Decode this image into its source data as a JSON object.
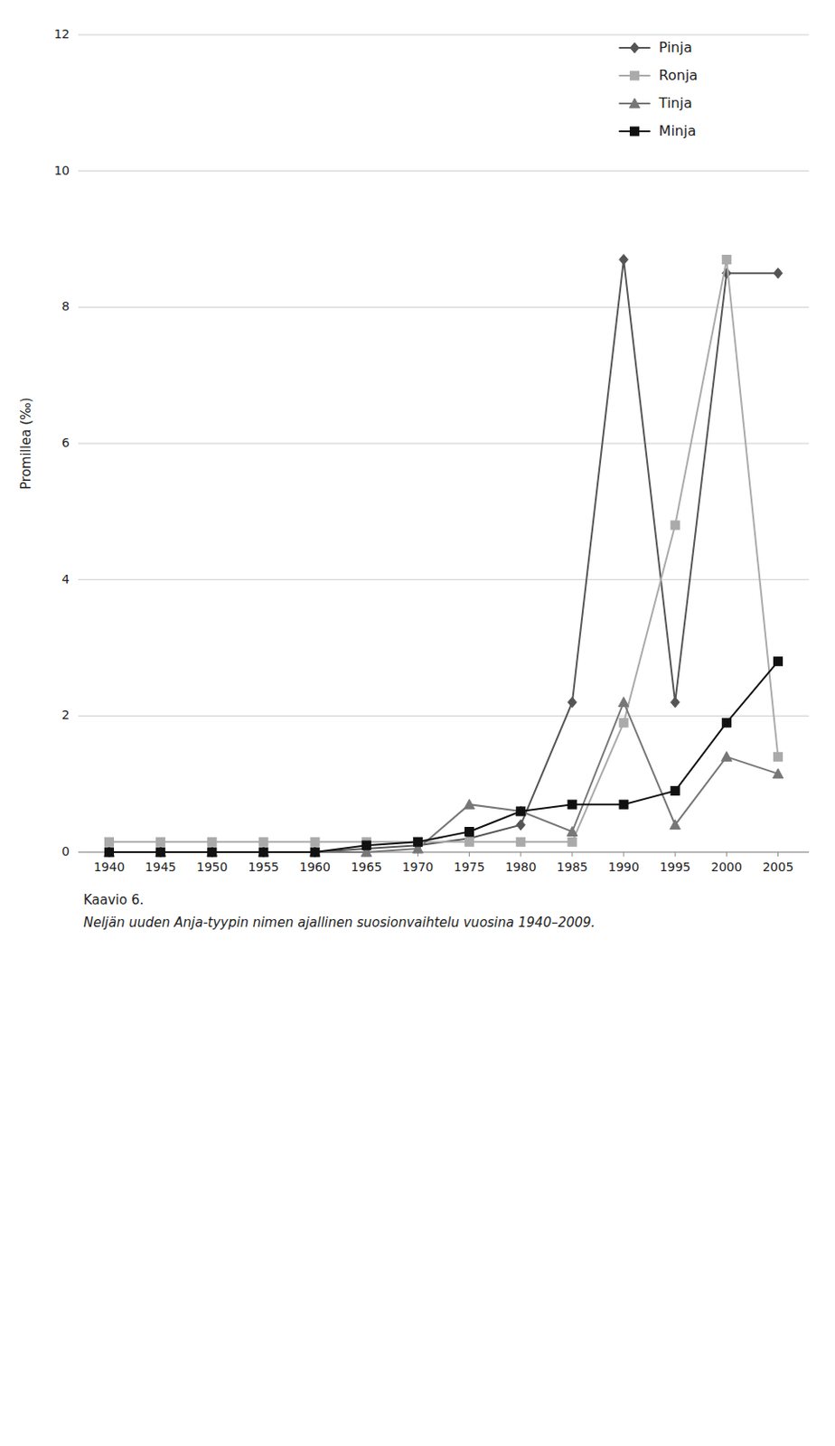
{
  "chart_data": {
    "type": "line",
    "ylabel": "Promillea (‰)",
    "x": [
      1940,
      1945,
      1950,
      1955,
      1960,
      1965,
      1970,
      1975,
      1980,
      1985,
      1990,
      1995,
      2000,
      2005
    ],
    "series": [
      {
        "name": "Pinja",
        "color": "#555555",
        "marker": "diamond",
        "values": [
          0.0,
          0.0,
          0.0,
          0.0,
          0.0,
          0.05,
          0.1,
          0.2,
          0.4,
          2.2,
          8.7,
          2.2,
          8.5,
          8.5
        ]
      },
      {
        "name": "Ronja",
        "color": "#aaaaaa",
        "marker": "square",
        "values": [
          0.15,
          0.15,
          0.15,
          0.15,
          0.15,
          0.15,
          0.15,
          0.15,
          0.15,
          0.15,
          1.9,
          4.8,
          8.7,
          1.4
        ]
      },
      {
        "name": "Tinja",
        "color": "#777777",
        "marker": "triangle",
        "values": [
          0.0,
          0.0,
          0.0,
          0.0,
          0.0,
          0.0,
          0.05,
          0.7,
          0.6,
          0.3,
          2.2,
          0.4,
          1.4,
          1.15
        ]
      },
      {
        "name": "Minja",
        "color": "#111111",
        "marker": "square",
        "values": [
          0.0,
          0.0,
          0.0,
          0.0,
          0.0,
          0.1,
          0.15,
          0.3,
          0.6,
          0.7,
          0.7,
          0.9,
          1.9,
          2.8
        ]
      }
    ],
    "xlim": [
      1937,
      2008
    ],
    "xticks": [
      1940,
      1945,
      1950,
      1955,
      1960,
      1965,
      1970,
      1975,
      1980,
      1985,
      1990,
      1995,
      2000,
      2005
    ],
    "ylim": [
      0,
      12
    ],
    "yticks": [
      0,
      2,
      4,
      6,
      8,
      10,
      12
    ],
    "grid": "y",
    "legend": "upper right",
    "annotations": [
      "Kaavio 6.",
      "Neljän uuden Anja-tyypin nimen ajallinen suosionvaihtelu vuosina 1940–2009."
    ]
  }
}
